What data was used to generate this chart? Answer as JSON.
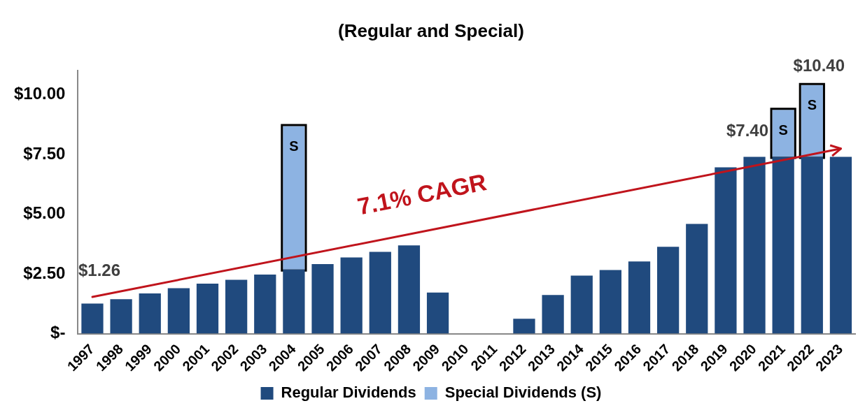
{
  "chart_data": {
    "type": "bar",
    "title": "(Regular and Special)",
    "stacked": true,
    "legend": "bottom",
    "grid": false,
    "categories": [
      "1997",
      "1998",
      "1999",
      "2000",
      "2001",
      "2002",
      "2003",
      "2004",
      "2005",
      "2006",
      "2007",
      "2008",
      "2009",
      "2010",
      "2011",
      "2012",
      "2013",
      "2014",
      "2015",
      "2016",
      "2017",
      "2018",
      "2019",
      "2020",
      "2021",
      "2022",
      "2023"
    ],
    "ylim": [
      0,
      11
    ],
    "yticks": [
      {
        "value": 0,
        "label": "$-"
      },
      {
        "value": 2.5,
        "label": "$2.50"
      },
      {
        "value": 5,
        "label": "$5.00"
      },
      {
        "value": 7.5,
        "label": "$7.50"
      },
      {
        "value": 10,
        "label": "$10.00"
      }
    ],
    "series": [
      {
        "name": "Regular Dividends",
        "color": "#204a7e",
        "values": [
          1.26,
          1.44,
          1.68,
          1.9,
          2.09,
          2.25,
          2.47,
          2.68,
          2.91,
          3.19,
          3.42,
          3.69,
          1.72,
          0,
          0,
          0.62,
          1.62,
          2.43,
          2.66,
          3.02,
          3.63,
          4.59,
          6.96,
          7.4,
          7.4,
          7.4,
          7.4
        ]
      },
      {
        "name": "Special Dividends (S)",
        "color": "#8db3e2",
        "values": [
          null,
          null,
          null,
          null,
          null,
          null,
          null,
          6.0,
          null,
          null,
          null,
          null,
          null,
          null,
          null,
          null,
          null,
          null,
          null,
          null,
          null,
          null,
          null,
          null,
          1.96,
          3.0,
          null
        ],
        "value_labels": [
          null,
          null,
          null,
          null,
          null,
          null,
          null,
          "S",
          null,
          null,
          null,
          null,
          null,
          null,
          null,
          null,
          null,
          null,
          null,
          null,
          null,
          null,
          null,
          null,
          "S",
          "S",
          null
        ]
      }
    ],
    "annotations": [
      {
        "text": "$1.26",
        "x": "1997",
        "y": 1.26
      },
      {
        "text": "$7.40",
        "x": "2020",
        "y": 7.4
      },
      {
        "text": "$10.40",
        "x": "2022",
        "y": 10.4
      },
      "7.1% CAGR"
    ]
  }
}
